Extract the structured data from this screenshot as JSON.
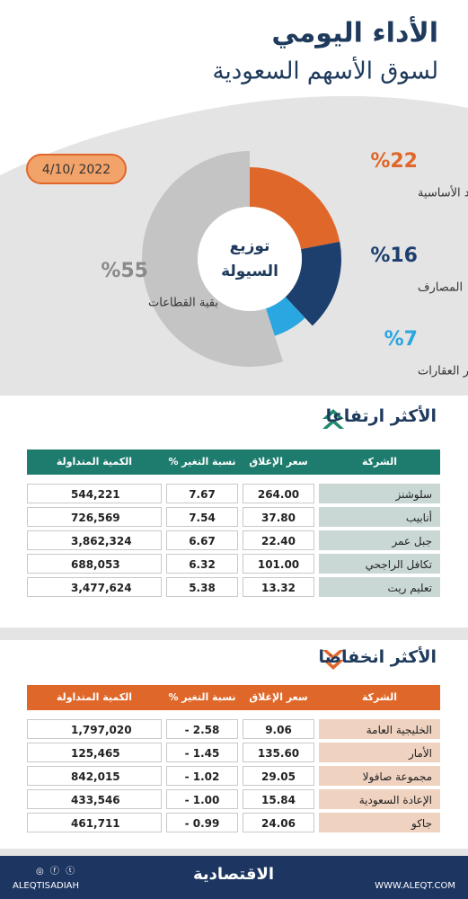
{
  "header": {
    "title": "الأداء اليومي",
    "subtitle": "لسوق الأسهم السعودية",
    "date": "4/10/ 2022"
  },
  "chart_data": {
    "type": "pie",
    "center_label": [
      "توزيع",
      "السيولة"
    ],
    "categories": [
      "المواد الأساسية",
      "المصارف",
      "إدارة وتطوير العقارات",
      "بقية القطاعات"
    ],
    "values": [
      22,
      16,
      7,
      55
    ],
    "value_labels": [
      "%22",
      "%16",
      "%7",
      "%55"
    ],
    "colors": [
      "#e0672a",
      "#1d3f6e",
      "#2aa6e0",
      "#c4c4c4"
    ]
  },
  "gainers": {
    "title": "الأكثر ارتفاعا",
    "color": "#1e7c6e",
    "company_color": "#c9d8d5",
    "columns": [
      "الشركة",
      "سعر الإغلاق",
      "نسبة التغير %",
      "الكمية المتداولة"
    ],
    "rows": [
      [
        "سلوشنز",
        "264.00",
        "7.67",
        "544,221"
      ],
      [
        "أنابيب",
        "37.80",
        "7.54",
        "726,569"
      ],
      [
        "جبل عمر",
        "22.40",
        "6.67",
        "3,862,324"
      ],
      [
        "تكافل الراجحي",
        "101.00",
        "6.32",
        "688,053"
      ],
      [
        "تعليم ريت",
        "13.32",
        "5.38",
        "3,477,624"
      ]
    ]
  },
  "losers": {
    "title": "الأكثر انخفاضا",
    "color": "#e0672a",
    "company_color": "#efd2bf",
    "columns": [
      "الشركة",
      "سعر الإغلاق",
      "نسبة التغير %",
      "الكمية المتداولة"
    ],
    "rows": [
      [
        "الخليجية العامة",
        "9.06",
        "- 2.58",
        "1,797,020"
      ],
      [
        "الأمار",
        "135.60",
        "- 1.45",
        "125,465"
      ],
      [
        "مجموعة صافولا",
        "29.05",
        "- 1.02",
        "842,015"
      ],
      [
        "الإعادة السعودية",
        "15.84",
        "- 1.00",
        "433,546"
      ],
      [
        "جاكو",
        "24.06",
        "- 0.99",
        "461,711"
      ]
    ]
  },
  "footer": {
    "handle": "ALEQTISADIAH",
    "logo": "الاقتصادية",
    "website": "WWW.ALEQT.COM"
  }
}
